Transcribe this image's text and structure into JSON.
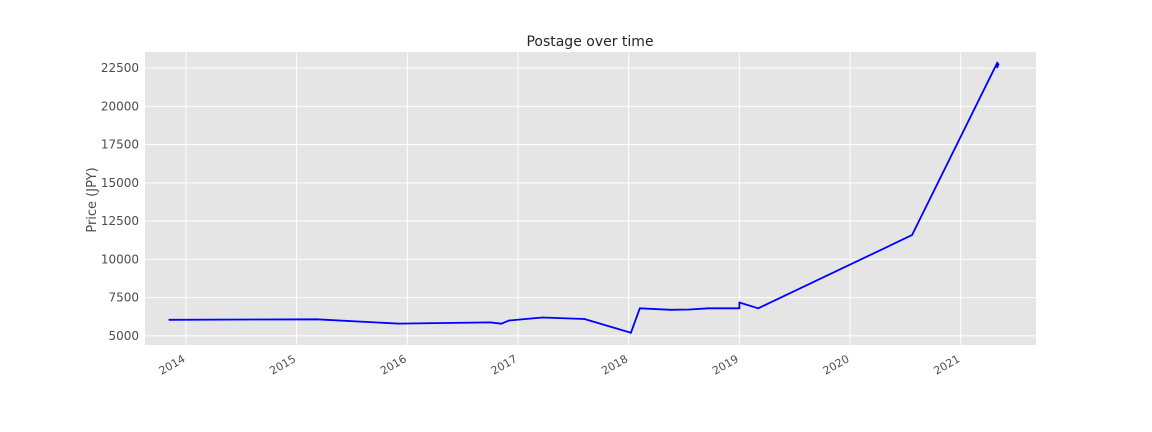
{
  "chart_data": {
    "type": "line",
    "title": "Postage over time",
    "xlabel": "",
    "ylabel": "Price (JPY)",
    "xlim": [
      2013.63,
      2021.68
    ],
    "ylim": [
      4400,
      23550
    ],
    "xticks": [
      {
        "value": 2014.0,
        "label": "2014"
      },
      {
        "value": 2015.0,
        "label": "2015"
      },
      {
        "value": 2016.0,
        "label": "2016"
      },
      {
        "value": 2017.0,
        "label": "2017"
      },
      {
        "value": 2018.0,
        "label": "2018"
      },
      {
        "value": 2019.0,
        "label": "2019"
      },
      {
        "value": 2020.0,
        "label": "2020"
      },
      {
        "value": 2021.0,
        "label": "2021"
      }
    ],
    "yticks": [
      {
        "value": 5000,
        "label": "5000"
      },
      {
        "value": 7500,
        "label": "7500"
      },
      {
        "value": 10000,
        "label": "10000"
      },
      {
        "value": 12500,
        "label": "12500"
      },
      {
        "value": 15000,
        "label": "15000"
      },
      {
        "value": 17500,
        "label": "17500"
      },
      {
        "value": 20000,
        "label": "20000"
      },
      {
        "value": 22500,
        "label": "22500"
      }
    ],
    "grid": true,
    "series": [
      {
        "name": "Postage",
        "color": "#0000ff",
        "x": [
          2013.85,
          2015.18,
          2015.92,
          2016.75,
          2016.85,
          2016.92,
          2017.22,
          2017.6,
          2018.02,
          2018.1,
          2018.38,
          2018.55,
          2018.72,
          2018.99,
          2019.0,
          2019.0,
          2019.17,
          2020.56,
          2021.33,
          2021.33,
          2021.34
        ],
        "y": [
          6050,
          6080,
          5800,
          5880,
          5790,
          6000,
          6200,
          6100,
          5200,
          6800,
          6700,
          6720,
          6800,
          6800,
          6800,
          7180,
          6800,
          11580,
          22850,
          22550,
          22750
        ]
      }
    ]
  }
}
